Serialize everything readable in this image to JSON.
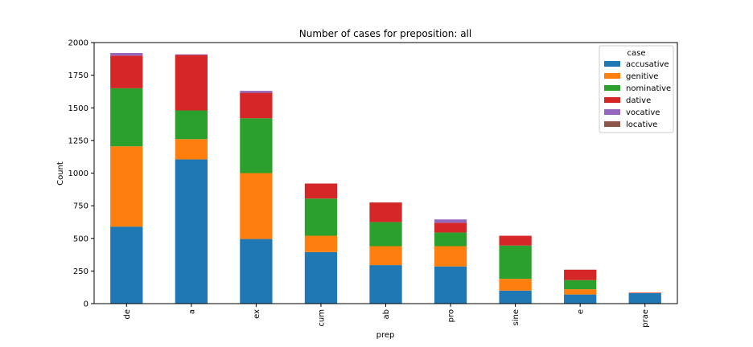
{
  "chart_data": {
    "type": "bar",
    "stacked": true,
    "title": "Number of cases for preposition: all",
    "xlabel": "prep",
    "ylabel": "Count",
    "ylim": [
      0,
      2000
    ],
    "yticks": [
      0,
      250,
      500,
      750,
      1000,
      1250,
      1500,
      1750,
      2000
    ],
    "categories": [
      "de",
      "a",
      "ex",
      "cum",
      "ab",
      "pro",
      "sine",
      "e",
      "prae"
    ],
    "legend": {
      "title": "case",
      "placement": "top-right"
    },
    "series": [
      {
        "name": "accusative",
        "color": "#1f77b4",
        "values": [
          590,
          1105,
          495,
          395,
          295,
          285,
          100,
          70,
          80
        ]
      },
      {
        "name": "genitive",
        "color": "#ff7f0e",
        "values": [
          615,
          155,
          505,
          125,
          145,
          155,
          90,
          40,
          2
        ]
      },
      {
        "name": "nominative",
        "color": "#2ca02c",
        "values": [
          445,
          220,
          420,
          285,
          185,
          105,
          255,
          70,
          0
        ]
      },
      {
        "name": "dative",
        "color": "#d62728",
        "values": [
          250,
          425,
          195,
          115,
          150,
          75,
          75,
          80,
          3
        ]
      },
      {
        "name": "vocative",
        "color": "#9467bd",
        "values": [
          20,
          5,
          15,
          0,
          0,
          25,
          0,
          0,
          0
        ]
      },
      {
        "name": "locative",
        "color": "#8c564b",
        "values": [
          0,
          0,
          0,
          0,
          0,
          0,
          0,
          0,
          0
        ]
      }
    ]
  }
}
